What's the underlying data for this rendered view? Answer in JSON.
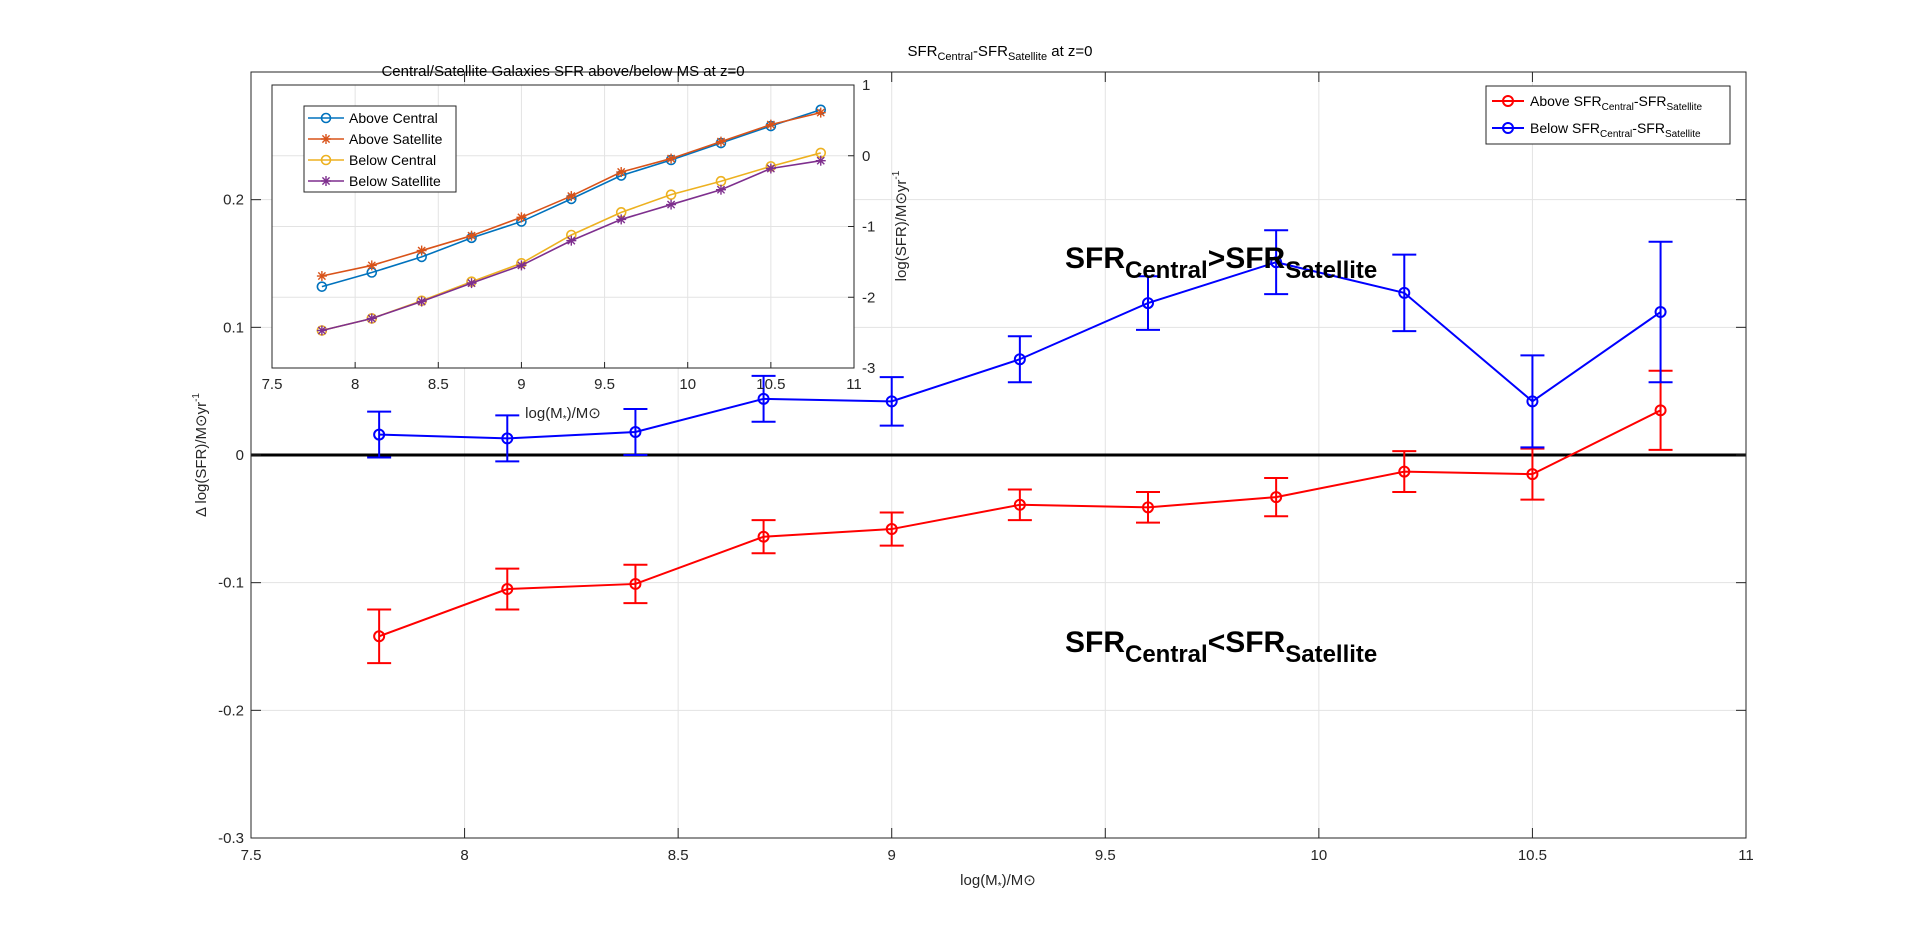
{
  "chart_data": [
    {
      "type": "line",
      "role": "main",
      "title": {
        "main": "SFR",
        "sub1": "Central",
        "mid": "-SFR",
        "sub2": "Satellite",
        "tail": " at z=0"
      },
      "xlabel": {
        "main": "log(M",
        "sub": "*",
        "tail": ")/M⊙"
      },
      "ylabel": {
        "main": "Δ log(SFR)/M⊙yr",
        "sup": "-1"
      },
      "xlim": [
        7.5,
        11
      ],
      "ylim": [
        -0.3,
        0.3
      ],
      "xticks": [
        7.5,
        8,
        8.5,
        9,
        9.5,
        10,
        10.5,
        11
      ],
      "yticks": [
        -0.3,
        -0.2,
        -0.1,
        0,
        0.1,
        0.2
      ],
      "xtick_labels": [
        "7.5",
        "8",
        "8.5",
        "9",
        "9.5",
        "10",
        "10.5",
        "11"
      ],
      "ytick_labels": [
        "-0.3",
        "-0.2",
        "-0.1",
        "0",
        "0.1",
        "0.2"
      ],
      "grid": true,
      "reference_line_y": 0,
      "x": [
        7.8,
        8.1,
        8.4,
        8.7,
        9.0,
        9.3,
        9.6,
        9.9,
        10.2,
        10.5,
        10.8
      ],
      "series": [
        {
          "name": {
            "main": "Above SFR",
            "sub1": "Central",
            "mid": "-SFR",
            "sub2": "Satellite"
          },
          "color": "#ff0000",
          "marker": "circle",
          "values": [
            -0.142,
            -0.105,
            -0.101,
            -0.064,
            -0.058,
            -0.039,
            -0.041,
            -0.033,
            -0.013,
            -0.015,
            0.035
          ],
          "errors": [
            0.021,
            0.016,
            0.015,
            0.013,
            0.013,
            0.012,
            0.012,
            0.015,
            0.016,
            0.02,
            0.031
          ]
        },
        {
          "name": {
            "main": "Below SFR",
            "sub1": "Central",
            "mid": "-SFR",
            "sub2": "Satellite"
          },
          "color": "#0000ff",
          "marker": "circle",
          "values": [
            0.016,
            0.013,
            0.018,
            0.044,
            0.042,
            0.075,
            0.119,
            0.151,
            0.127,
            0.042,
            0.112
          ],
          "errors": [
            0.018,
            0.018,
            0.018,
            0.018,
            0.019,
            0.018,
            0.021,
            0.025,
            0.03,
            0.036,
            0.055
          ]
        }
      ],
      "legend_position": "top-right",
      "annotations": [
        {
          "id": "greater",
          "main": "SFR",
          "sub1": "Central",
          "op": ">SFR",
          "sub2": "Satellite"
        },
        {
          "id": "less",
          "main": "SFR",
          "sub1": "Central",
          "op": "<SFR",
          "sub2": "Satellite"
        }
      ]
    },
    {
      "type": "line",
      "role": "inset",
      "title": "Central/Satellite Galaxies SFR above/below MS at z=0",
      "xlabel": {
        "main": "log(M",
        "sub": "*",
        "tail": ")/M⊙"
      },
      "ylabel": {
        "main": "log(SFR)/M⊙yr",
        "sup": "-1"
      },
      "y_axis_side": "right",
      "xlim": [
        7.5,
        11
      ],
      "ylim": [
        -3,
        1
      ],
      "xticks": [
        7.5,
        8,
        8.5,
        9,
        9.5,
        10,
        10.5,
        11
      ],
      "yticks": [
        -3,
        -2,
        -1,
        0,
        1
      ],
      "xtick_labels": [
        "7.5",
        "8",
        "8.5",
        "9",
        "9.5",
        "10",
        "10.5",
        "11"
      ],
      "ytick_labels": [
        "-3",
        "-2",
        "-1",
        "0",
        "1"
      ],
      "grid": true,
      "x": [
        7.8,
        8.1,
        8.4,
        8.7,
        9.0,
        9.3,
        9.6,
        9.9,
        10.2,
        10.5,
        10.8
      ],
      "series": [
        {
          "name": "Above Central",
          "color": "#0072bd",
          "marker": "circle",
          "values": [
            -1.85,
            -1.65,
            -1.43,
            -1.16,
            -0.93,
            -0.61,
            -0.28,
            -0.06,
            0.18,
            0.42,
            0.65
          ]
        },
        {
          "name": "Above Satellite",
          "color": "#d95319",
          "marker": "asterisk",
          "values": [
            -1.7,
            -1.55,
            -1.34,
            -1.13,
            -0.87,
            -0.57,
            -0.23,
            -0.04,
            0.2,
            0.44,
            0.61
          ]
        },
        {
          "name": "Below Central",
          "color": "#edb120",
          "marker": "circle",
          "values": [
            -2.47,
            -2.3,
            -2.05,
            -1.78,
            -1.52,
            -1.12,
            -0.8,
            -0.55,
            -0.36,
            -0.15,
            0.04
          ]
        },
        {
          "name": "Below Satellite",
          "color": "#7e2f8e",
          "marker": "asterisk",
          "values": [
            -2.47,
            -2.3,
            -2.06,
            -1.8,
            -1.55,
            -1.2,
            -0.9,
            -0.69,
            -0.48,
            -0.18,
            -0.07
          ]
        }
      ],
      "legend_position": "top-left"
    }
  ]
}
